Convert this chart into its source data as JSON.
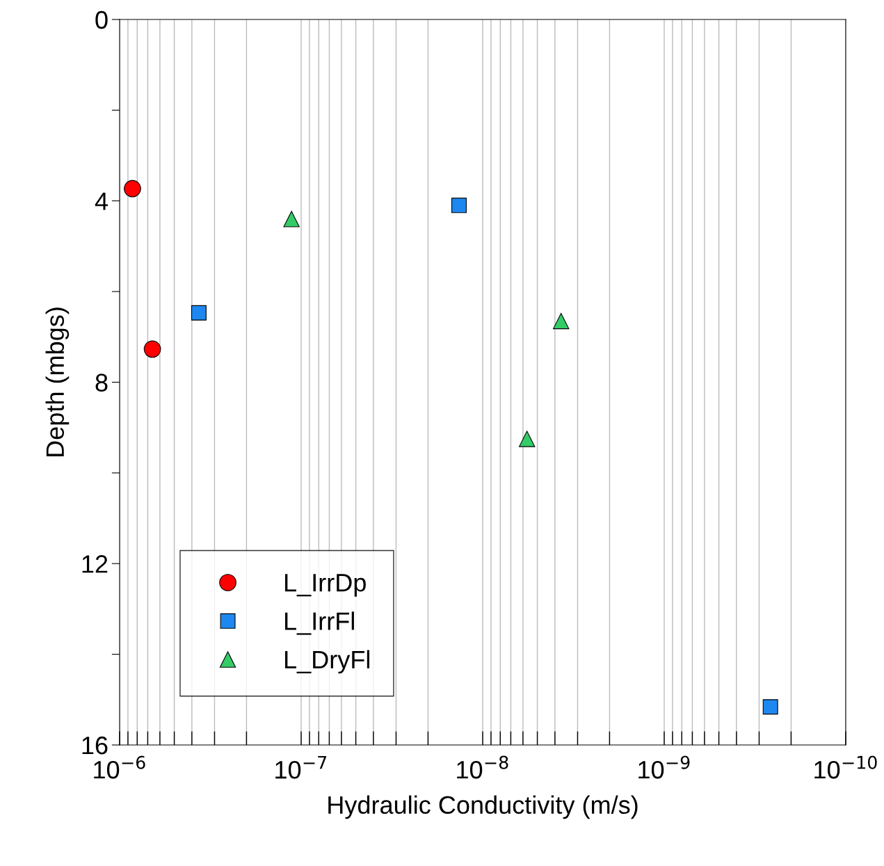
{
  "chart_data": {
    "type": "scatter",
    "xlabel": "Hydraulic Conductivity (m/s)",
    "ylabel": "Depth (mbgs)",
    "log": "x",
    "xlim": [
      1e-06,
      1e-10
    ],
    "xticks": [
      {
        "value": 1e-06,
        "label": "10$^{−6}$"
      },
      {
        "value": 1e-07,
        "label": "10$^{−7}$"
      },
      {
        "value": 1e-08,
        "label": "10$^{−8}$"
      },
      {
        "value": 1e-09,
        "label": "10$^{−9}$"
      },
      {
        "value": 1e-10,
        "label": "10$^{−10}$"
      }
    ],
    "ylim": [
      16,
      0
    ],
    "yticks": [
      0,
      {
        "value": 2,
        "label": null
      },
      4,
      {
        "value": 6,
        "label": null
      },
      8,
      {
        "value": 10,
        "label": null
      },
      12,
      {
        "value": 14,
        "label": null
      },
      16
    ],
    "grid": "x",
    "legend": "bottom left",
    "series": [
      {
        "name": "L_IrrDp",
        "color": "#ff0000",
        "marker": "circle",
        "x": [
          8.5e-07,
          6.6e-07
        ],
        "values": [
          3.73,
          7.27
        ]
      },
      {
        "name": "L_IrrFl",
        "color": "#1e88f0",
        "marker": "square",
        "x": [
          3.66e-07,
          1.35e-08,
          2.6e-10
        ],
        "values": [
          6.47,
          4.1,
          15.16
        ]
      },
      {
        "name": "L_DryFl",
        "color": "#33cc66",
        "marker": "triangle",
        "x": [
          1.13e-07,
          3.7e-09,
          5.7e-09
        ],
        "values": [
          4.4,
          6.65,
          9.25
        ]
      }
    ]
  }
}
